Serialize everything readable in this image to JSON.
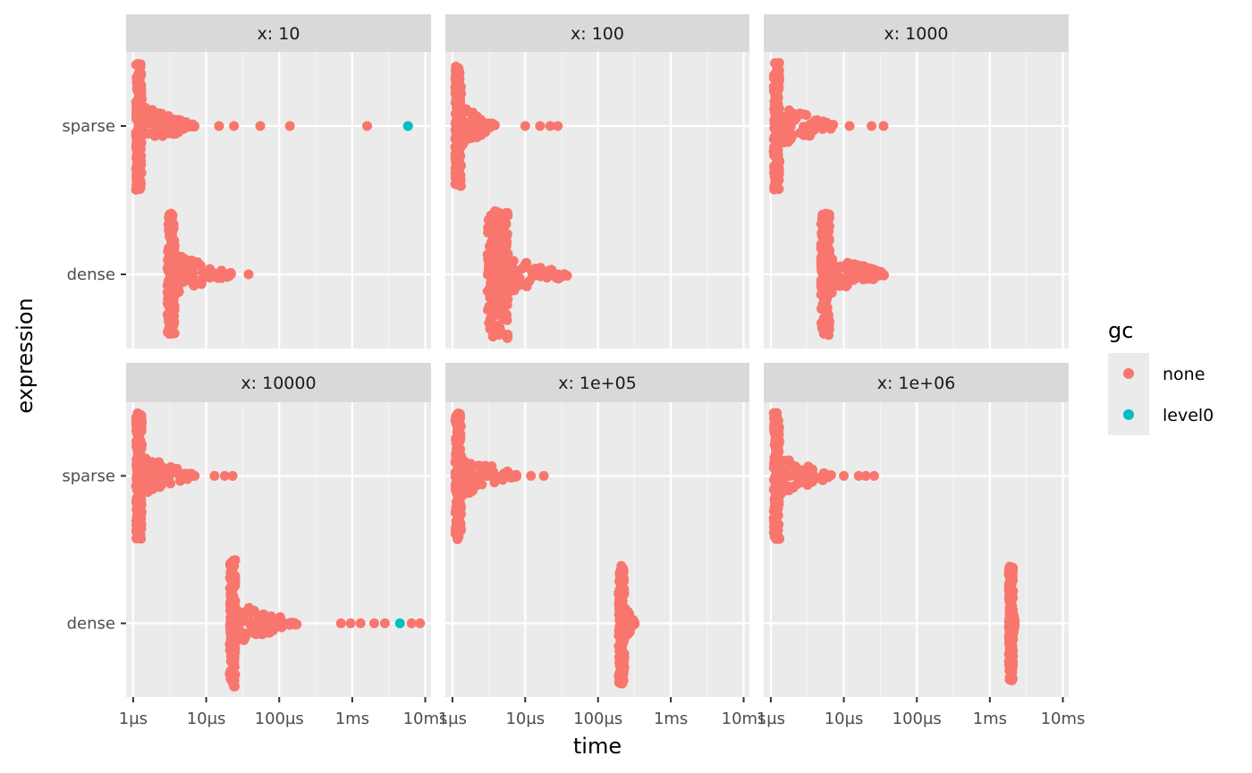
{
  "chart_data": {
    "type": "scatter",
    "xlabel": "time",
    "ylabel": "expression",
    "x_scale": "log10",
    "x_unit": "seconds",
    "xlim": [
      8e-07,
      0.012
    ],
    "x_ticks": [
      {
        "value": 1e-06,
        "label": "1µs"
      },
      {
        "value": 1e-05,
        "label": "10µs"
      },
      {
        "value": 0.0001,
        "label": "100µs"
      },
      {
        "value": 0.001,
        "label": "1ms"
      },
      {
        "value": 0.01,
        "label": "10ms"
      }
    ],
    "categories": [
      "sparse",
      "dense"
    ],
    "grid": true,
    "legend": {
      "title": "gc",
      "position": "right",
      "entries": [
        {
          "name": "none",
          "color": "#F8766D"
        },
        {
          "name": "level0",
          "color": "#00BFC4"
        }
      ]
    },
    "facet_label_prefix": "x: ",
    "panels": [
      {
        "label": "x: 10",
        "rows": [
          {
            "category": "sparse",
            "bulk_center": 1.2e-06,
            "bulk_halfwidth": 0.04,
            "bulk_height": 0.86,
            "tail_start": 1.3e-06,
            "tail_end": 7e-06,
            "outliers": [
              1.5e-05,
              2.4e-05,
              5.5e-05,
              0.00014,
              0.0016
            ],
            "gc_points": [
              0.0058
            ]
          },
          {
            "category": "dense",
            "bulk_center": 3.3e-06,
            "bulk_halfwidth": 0.05,
            "bulk_height": 0.82,
            "tail_start": 3.6e-06,
            "tail_end": 2.3e-05,
            "outliers": [
              3.8e-05
            ],
            "gc_points": []
          }
        ]
      },
      {
        "label": "x: 100",
        "rows": [
          {
            "category": "sparse",
            "bulk_center": 1.2e-06,
            "bulk_halfwidth": 0.04,
            "bulk_height": 0.82,
            "tail_start": 1.3e-06,
            "tail_end": 4e-06,
            "outliers": [
              1e-05,
              1.6e-05,
              2.2e-05,
              2.8e-05
            ],
            "gc_points": []
          },
          {
            "category": "dense",
            "bulk_center": 4.2e-06,
            "bulk_halfwidth": 0.14,
            "bulk_height": 0.86,
            "tail_start": 5e-06,
            "tail_end": 4.2e-05,
            "outliers": [],
            "gc_points": []
          }
        ]
      },
      {
        "label": "x: 1000",
        "rows": [
          {
            "category": "sparse",
            "bulk_center": 1.2e-06,
            "bulk_halfwidth": 0.04,
            "bulk_height": 0.86,
            "tail_start": 1.3e-06,
            "tail_end": 8e-06,
            "outliers": [
              1.2e-05,
              2.4e-05,
              3.5e-05
            ],
            "gc_points": []
          },
          {
            "category": "dense",
            "bulk_center": 5.6e-06,
            "bulk_halfwidth": 0.06,
            "bulk_height": 0.82,
            "tail_start": 6e-06,
            "tail_end": 3.8e-05,
            "outliers": [],
            "gc_points": []
          }
        ]
      },
      {
        "label": "x: 10000",
        "rows": [
          {
            "category": "sparse",
            "bulk_center": 1.2e-06,
            "bulk_halfwidth": 0.04,
            "bulk_height": 0.86,
            "tail_start": 1.3e-06,
            "tail_end": 7e-06,
            "outliers": [
              1.3e-05,
              1.8e-05,
              2.3e-05
            ],
            "gc_points": []
          },
          {
            "category": "dense",
            "bulk_center": 2.3e-05,
            "bulk_halfwidth": 0.04,
            "bulk_height": 0.86,
            "tail_start": 2.5e-05,
            "tail_end": 0.00018,
            "outliers": [
              0.0007,
              0.00095,
              0.0013,
              0.002,
              0.0028,
              0.0065,
              0.0085
            ],
            "gc_points": [
              0.0045
            ]
          }
        ]
      },
      {
        "label": "x: 1e+05",
        "rows": [
          {
            "category": "sparse",
            "bulk_center": 1.2e-06,
            "bulk_halfwidth": 0.04,
            "bulk_height": 0.86,
            "tail_start": 1.3e-06,
            "tail_end": 8e-06,
            "outliers": [
              1.2e-05,
              1.8e-05
            ],
            "gc_points": []
          },
          {
            "category": "dense",
            "bulk_center": 0.00021,
            "bulk_halfwidth": 0.04,
            "bulk_height": 0.82,
            "tail_start": 0.00022,
            "tail_end": 0.00032,
            "outliers": [],
            "gc_points": []
          }
        ]
      },
      {
        "label": "x: 1e+06",
        "rows": [
          {
            "category": "sparse",
            "bulk_center": 1.2e-06,
            "bulk_halfwidth": 0.04,
            "bulk_height": 0.86,
            "tail_start": 1.3e-06,
            "tail_end": 7e-06,
            "outliers": [
              1e-05,
              1.6e-05,
              2e-05,
              2.6e-05
            ],
            "gc_points": []
          },
          {
            "category": "dense",
            "bulk_center": 0.00195,
            "bulk_halfwidth": 0.03,
            "bulk_height": 0.78,
            "tail_start": 0.002,
            "tail_end": 0.0022,
            "outliers": [],
            "gc_points": []
          }
        ]
      }
    ]
  }
}
